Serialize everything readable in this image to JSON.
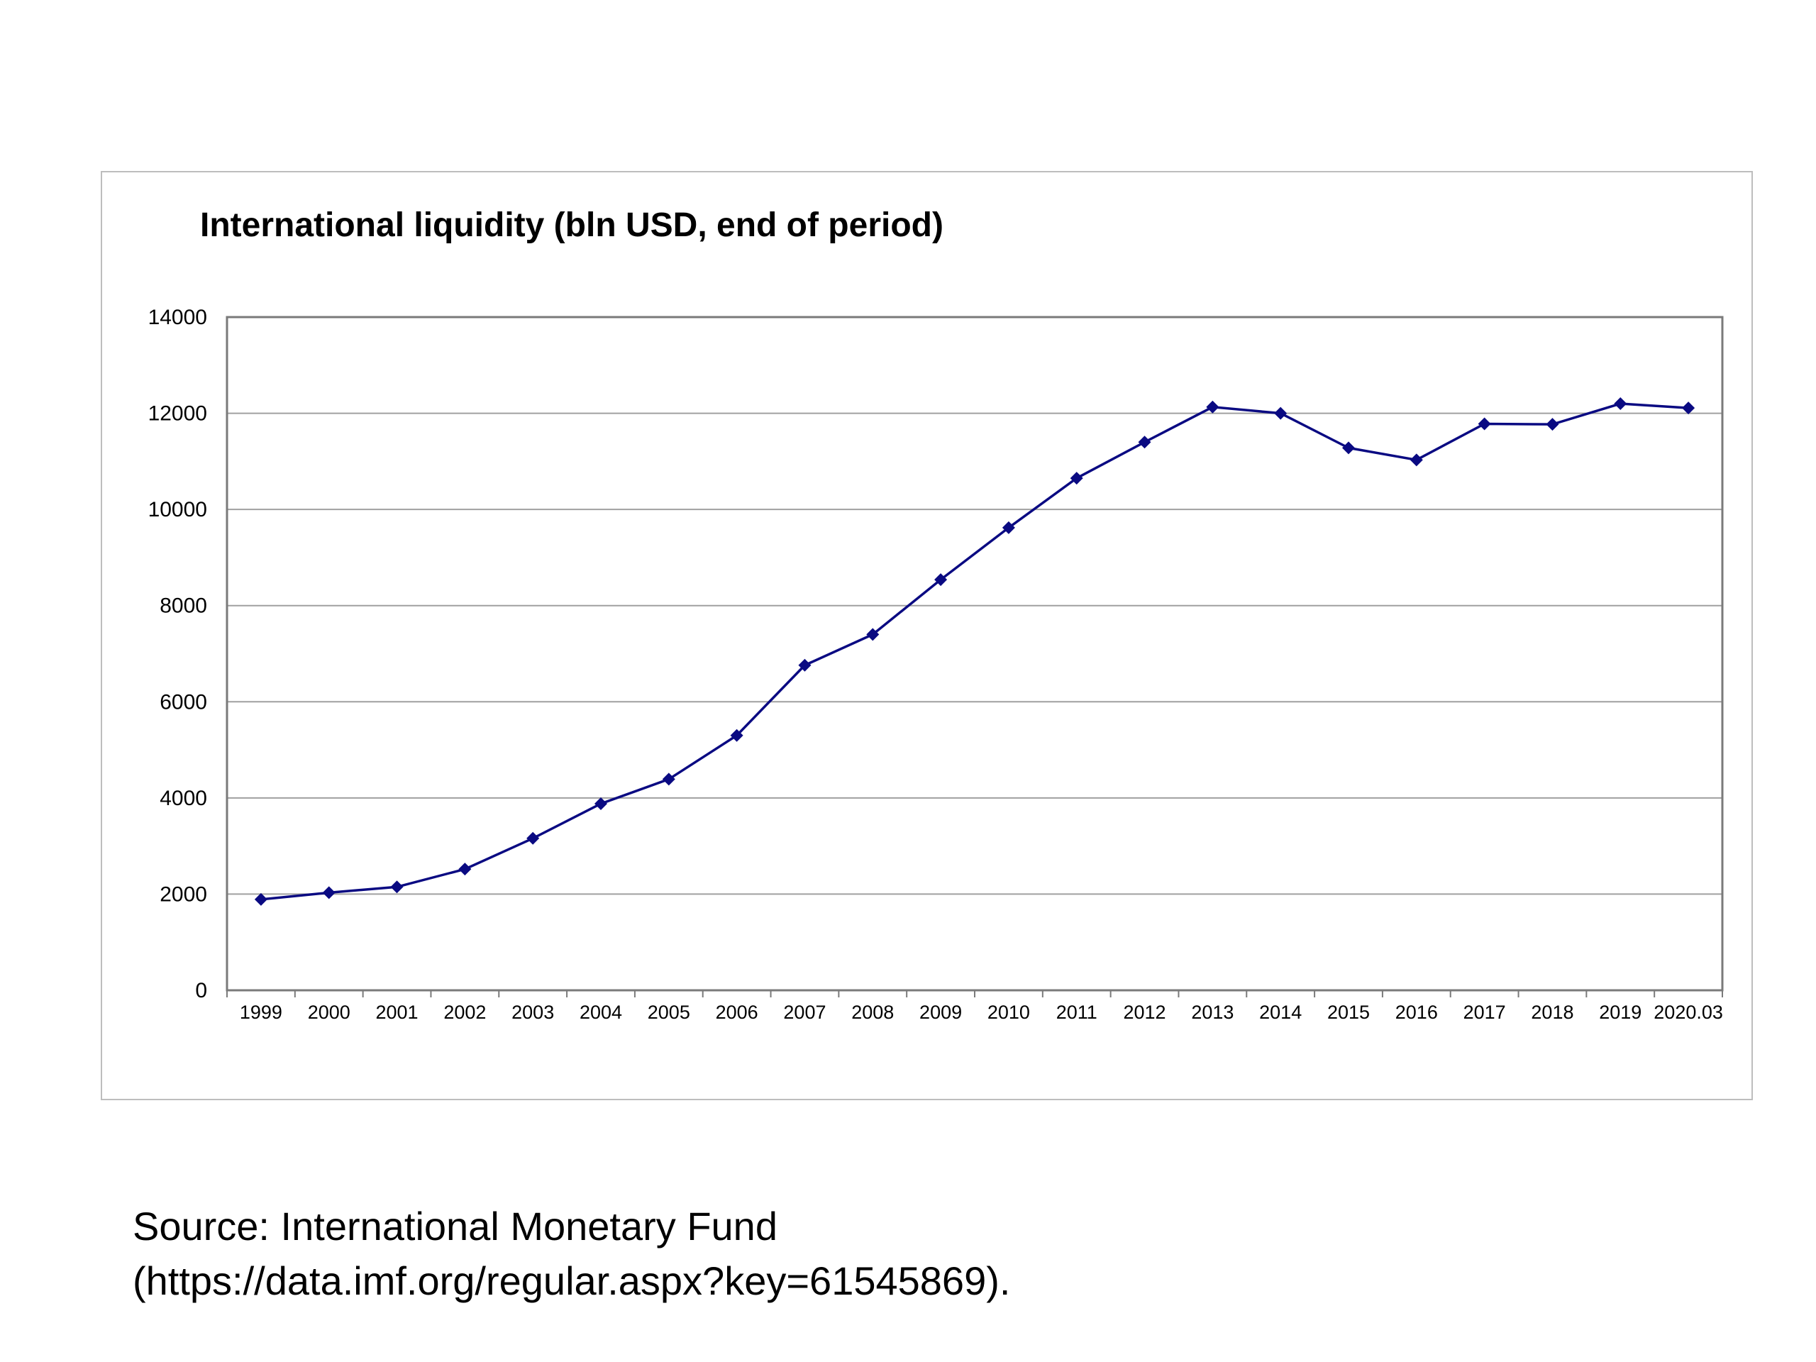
{
  "chart_data": {
    "type": "line",
    "title": "International liquidity (bln USD, end of period)",
    "xlabel": "",
    "ylabel": "",
    "ylim": [
      0,
      14000
    ],
    "yticks": [
      "0",
      "2000",
      "4000",
      "6000",
      "8000",
      "10000",
      "12000",
      "14000"
    ],
    "categories": [
      "1999",
      "2000",
      "2001",
      "2002",
      "2003",
      "2004",
      "2005",
      "2006",
      "2007",
      "2008",
      "2009",
      "2010",
      "2011",
      "2012",
      "2013",
      "2014",
      "2015",
      "2016",
      "2017",
      "2018",
      "2019",
      "2020.03"
    ],
    "series": [
      {
        "values": [
          1890,
          2030,
          2150,
          2520,
          3160,
          3880,
          4390,
          5300,
          6760,
          7400,
          8540,
          9620,
          10650,
          11400,
          12130,
          12000,
          11280,
          11030,
          11780,
          11770,
          12200,
          12110
        ],
        "color": "#0a0a82",
        "marker": "diamond"
      }
    ],
    "grid": true,
    "legend": "none"
  },
  "source": {
    "line1": "Source:  International Monetary Fund",
    "line2": "(https://data.imf.org/regular.aspx?key=61545869)."
  }
}
